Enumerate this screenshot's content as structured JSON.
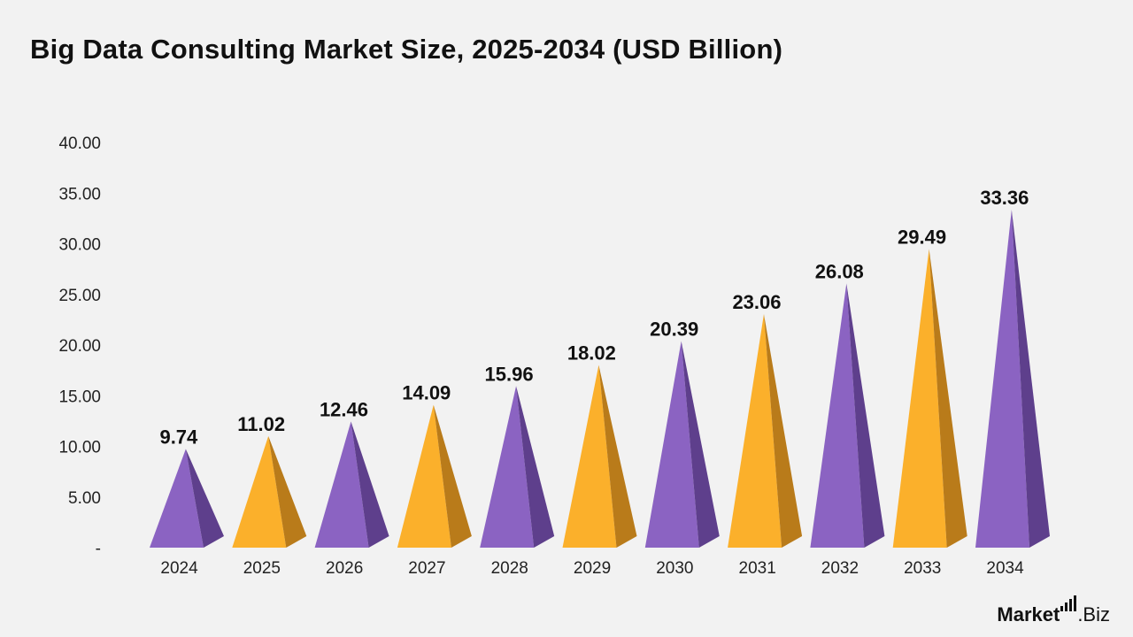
{
  "title": "Big Data Consulting Market Size, 2025-2034 (USD Billion)",
  "brand": {
    "name": "Market",
    "suffix": ".Biz"
  },
  "colors": {
    "purple": "#8b63c2",
    "purple_dark": "#5e3f8c",
    "orange": "#fbb02b",
    "orange_dark": "#b97b1a"
  },
  "chart_data": {
    "type": "bar",
    "title": "Big Data Consulting Market Size, 2025-2034 (USD Billion)",
    "xlabel": "",
    "ylabel": "",
    "ylim": [
      0,
      40
    ],
    "yticks": [
      "-",
      "5.00",
      "10.00",
      "15.00",
      "20.00",
      "25.00",
      "30.00",
      "35.00",
      "40.00"
    ],
    "categories": [
      "2024",
      "2025",
      "2026",
      "2027",
      "2028",
      "2029",
      "2030",
      "2031",
      "2032",
      "2033",
      "2034"
    ],
    "values": [
      9.74,
      11.02,
      12.46,
      14.09,
      15.96,
      18.02,
      20.39,
      23.06,
      26.08,
      29.49,
      33.36
    ],
    "labels": [
      "9.74",
      "11.02",
      "12.46",
      "14.09",
      "15.96",
      "18.02",
      "20.39",
      "23.06",
      "26.08",
      "29.49",
      "33.36"
    ],
    "bar_colors": [
      "purple",
      "orange",
      "purple",
      "orange",
      "purple",
      "orange",
      "purple",
      "orange",
      "purple",
      "orange",
      "purple"
    ],
    "grid": false,
    "legend": "none"
  }
}
